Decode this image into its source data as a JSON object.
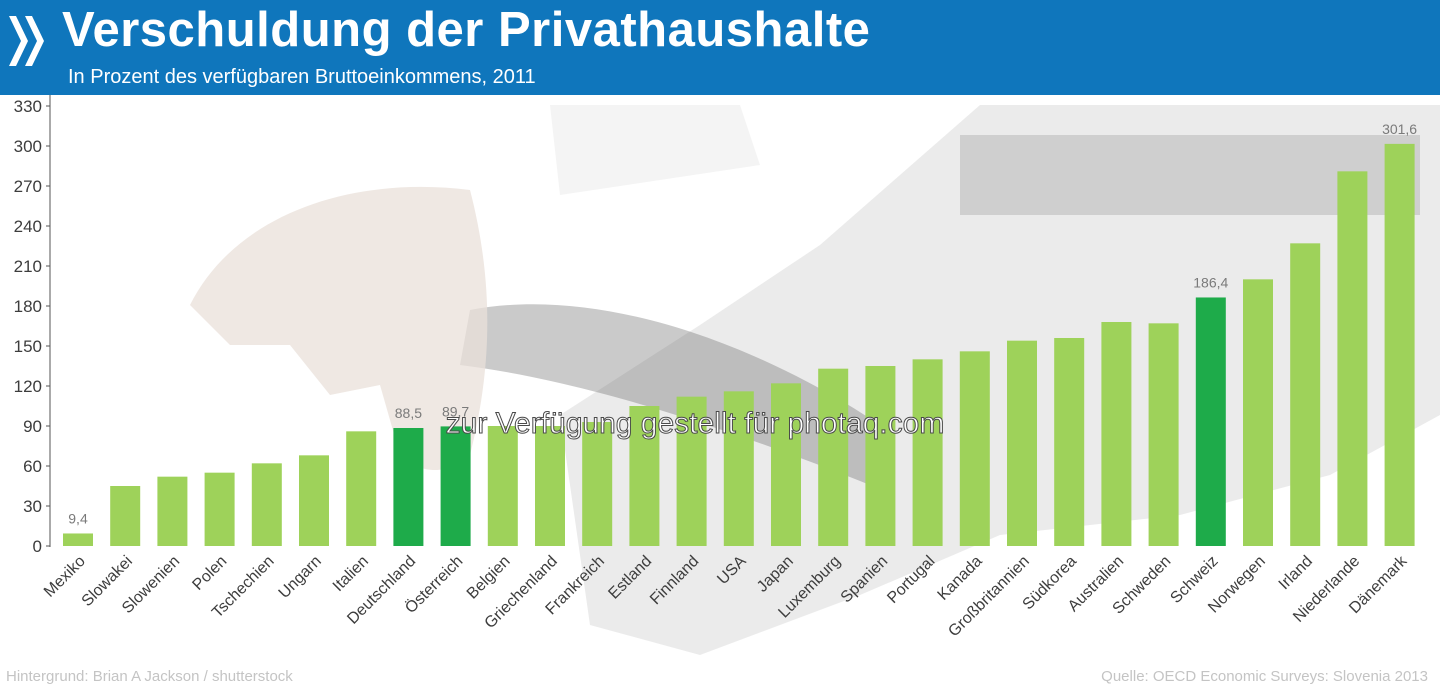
{
  "header": {
    "title": "Verschuldung der Privathaushalte",
    "subtitle": "In Prozent des verfügbaren Bruttoeinkommens, 2011"
  },
  "colors": {
    "header_bg": "#0f76bc",
    "bar": "#9ed25a",
    "bar_highlight": "#1eab4a",
    "label": "#3d3d3d",
    "value_label": "#7a7a7a"
  },
  "watermark": "zur Verfügung gestellt für photaq.com",
  "footer": {
    "credit": "Hintergrund: Brian A Jackson / shutterstock",
    "source": "Quelle: OECD Economic Surveys: Slovenia 2013"
  },
  "chart_data": {
    "type": "bar",
    "title": "Verschuldung der Privathaushalte",
    "subtitle": "In Prozent des verfügbaren Bruttoeinkommens, 2011",
    "xlabel": "",
    "ylabel": "",
    "ylim": [
      0,
      330
    ],
    "yticks": [
      0,
      30,
      60,
      90,
      120,
      150,
      180,
      210,
      240,
      270,
      300,
      330
    ],
    "grid": false,
    "categories": [
      "Mexiko",
      "Slowakei",
      "Slowenien",
      "Polen",
      "Tschechien",
      "Ungarn",
      "Italien",
      "Deutschland",
      "Österreich",
      "Belgien",
      "Griechenland",
      "Frankreich",
      "Estland",
      "Finnland",
      "USA",
      "Japan",
      "Luxemburg",
      "Spanien",
      "Portugal",
      "Kanada",
      "Großbritannien",
      "Südkorea",
      "Australien",
      "Schweden",
      "Schweiz",
      "Norwegen",
      "Irland",
      "Niederlande",
      "Dänemark"
    ],
    "values": [
      9.4,
      45,
      52,
      55,
      62,
      68,
      86,
      88.5,
      89.7,
      90,
      90,
      93,
      105,
      112,
      116,
      122,
      133,
      135,
      140,
      146,
      154,
      156,
      168,
      167,
      186.4,
      200,
      227,
      281,
      301.6
    ],
    "highlighted": [
      "Deutschland",
      "Österreich",
      "Schweiz"
    ],
    "data_labels": {
      "Mexiko": "9,4",
      "Deutschland": "88,5",
      "Österreich": "89,7",
      "Schweiz": "186,4",
      "Dänemark": "301,6"
    }
  }
}
